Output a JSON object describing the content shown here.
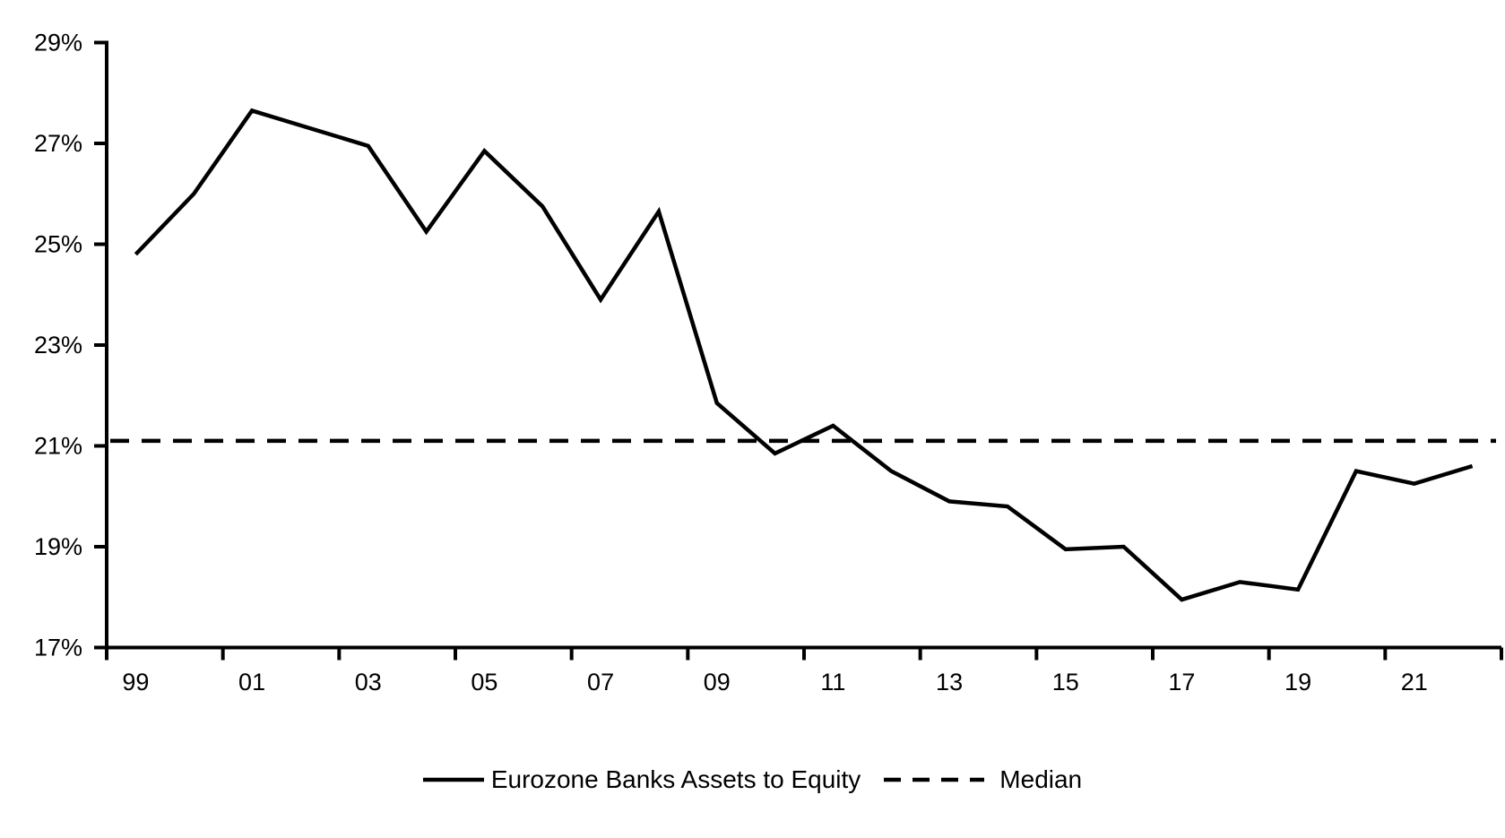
{
  "chart_data": {
    "type": "line",
    "title": "",
    "xlabel": "",
    "ylabel": "",
    "x_years": [
      "1999",
      "2000",
      "2001",
      "2002",
      "2003",
      "2004",
      "2005",
      "2006",
      "2007",
      "2008",
      "2009",
      "2010",
      "2011",
      "2012",
      "2013",
      "2014",
      "2015",
      "2016",
      "2017",
      "2018",
      "2019",
      "2020",
      "2021",
      "2022"
    ],
    "x_tick_labels": [
      "99",
      "01",
      "03",
      "05",
      "07",
      "09",
      "11",
      "13",
      "15",
      "17",
      "19",
      "21"
    ],
    "y_tick_labels": [
      "17%",
      "19%",
      "21%",
      "23%",
      "25%",
      "27%",
      "29%"
    ],
    "ylim": [
      17,
      29
    ],
    "y_tick_step": 2,
    "grid": false,
    "legend_position": "bottom",
    "series": [
      {
        "name": "Eurozone Banks Assets to Equity",
        "line_style": "solid",
        "color": "#000000",
        "values": [
          24.8,
          26.0,
          27.65,
          27.3,
          26.95,
          25.25,
          26.85,
          25.75,
          23.9,
          25.65,
          21.85,
          20.85,
          21.4,
          20.5,
          19.9,
          19.8,
          18.95,
          19.0,
          17.95,
          18.3,
          18.15,
          20.5,
          20.25,
          20.6
        ]
      }
    ],
    "median_line": {
      "label": "Median",
      "value": 21.1,
      "line_style": "dashed",
      "color": "#000000"
    }
  },
  "colors": {
    "axis": "#000000",
    "background": "#ffffff"
  }
}
